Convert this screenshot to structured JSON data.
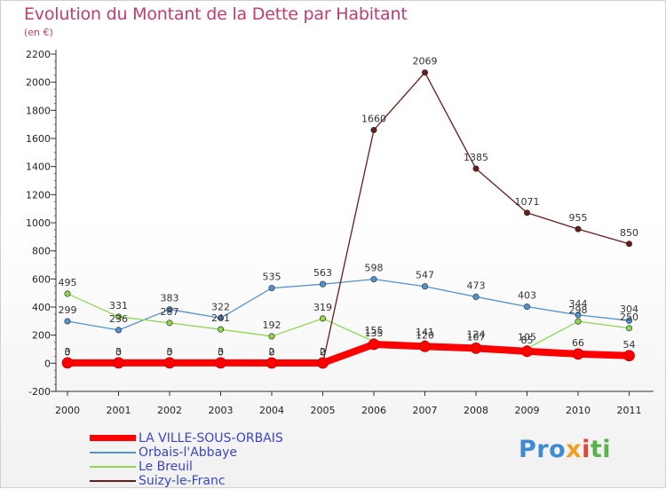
{
  "title": "Evolution du Montant de la Dette par Habitant",
  "subtitle": "(en €)",
  "logo": {
    "text": [
      "Pro",
      "x",
      "i",
      "ti"
    ]
  },
  "chart_data": {
    "type": "line",
    "title": "Evolution du Montant de la Dette par Habitant",
    "subtitle": "(en €)",
    "xlabel": "",
    "ylabel": "",
    "x": [
      "2000",
      "2001",
      "2002",
      "2003",
      "2004",
      "2005",
      "2006",
      "2007",
      "2008",
      "2009",
      "2010",
      "2011"
    ],
    "ylim": [
      -200,
      2200
    ],
    "yticks": [
      -200,
      0,
      200,
      400,
      600,
      800,
      1000,
      1200,
      1400,
      1600,
      1800,
      2000,
      2200
    ],
    "grid": false,
    "legend_position": "bottom-left",
    "series": [
      {
        "name": "LA VILLE-SOUS-ORBAIS",
        "color": "#ff0000",
        "values": [
          3,
          3,
          3,
          3,
          2,
          2,
          135,
          120,
          107,
          85,
          66,
          54
        ]
      },
      {
        "name": "Orbais-l'Abbaye",
        "color": "#4f92d6",
        "values": [
          299,
          236,
          383,
          322,
          535,
          563,
          598,
          547,
          473,
          403,
          344,
          304
        ]
      },
      {
        "name": "Le Breuil",
        "color": "#8fd84e",
        "values": [
          495,
          331,
          287,
          241,
          192,
          319,
          155,
          141,
          124,
          105,
          298,
          250
        ]
      },
      {
        "name": "Suizy-le-Franc",
        "color": "#6a1b1b",
        "values": [
          0,
          0,
          0,
          0,
          0,
          0,
          1660,
          2069,
          1385,
          1071,
          955,
          850
        ]
      }
    ]
  }
}
